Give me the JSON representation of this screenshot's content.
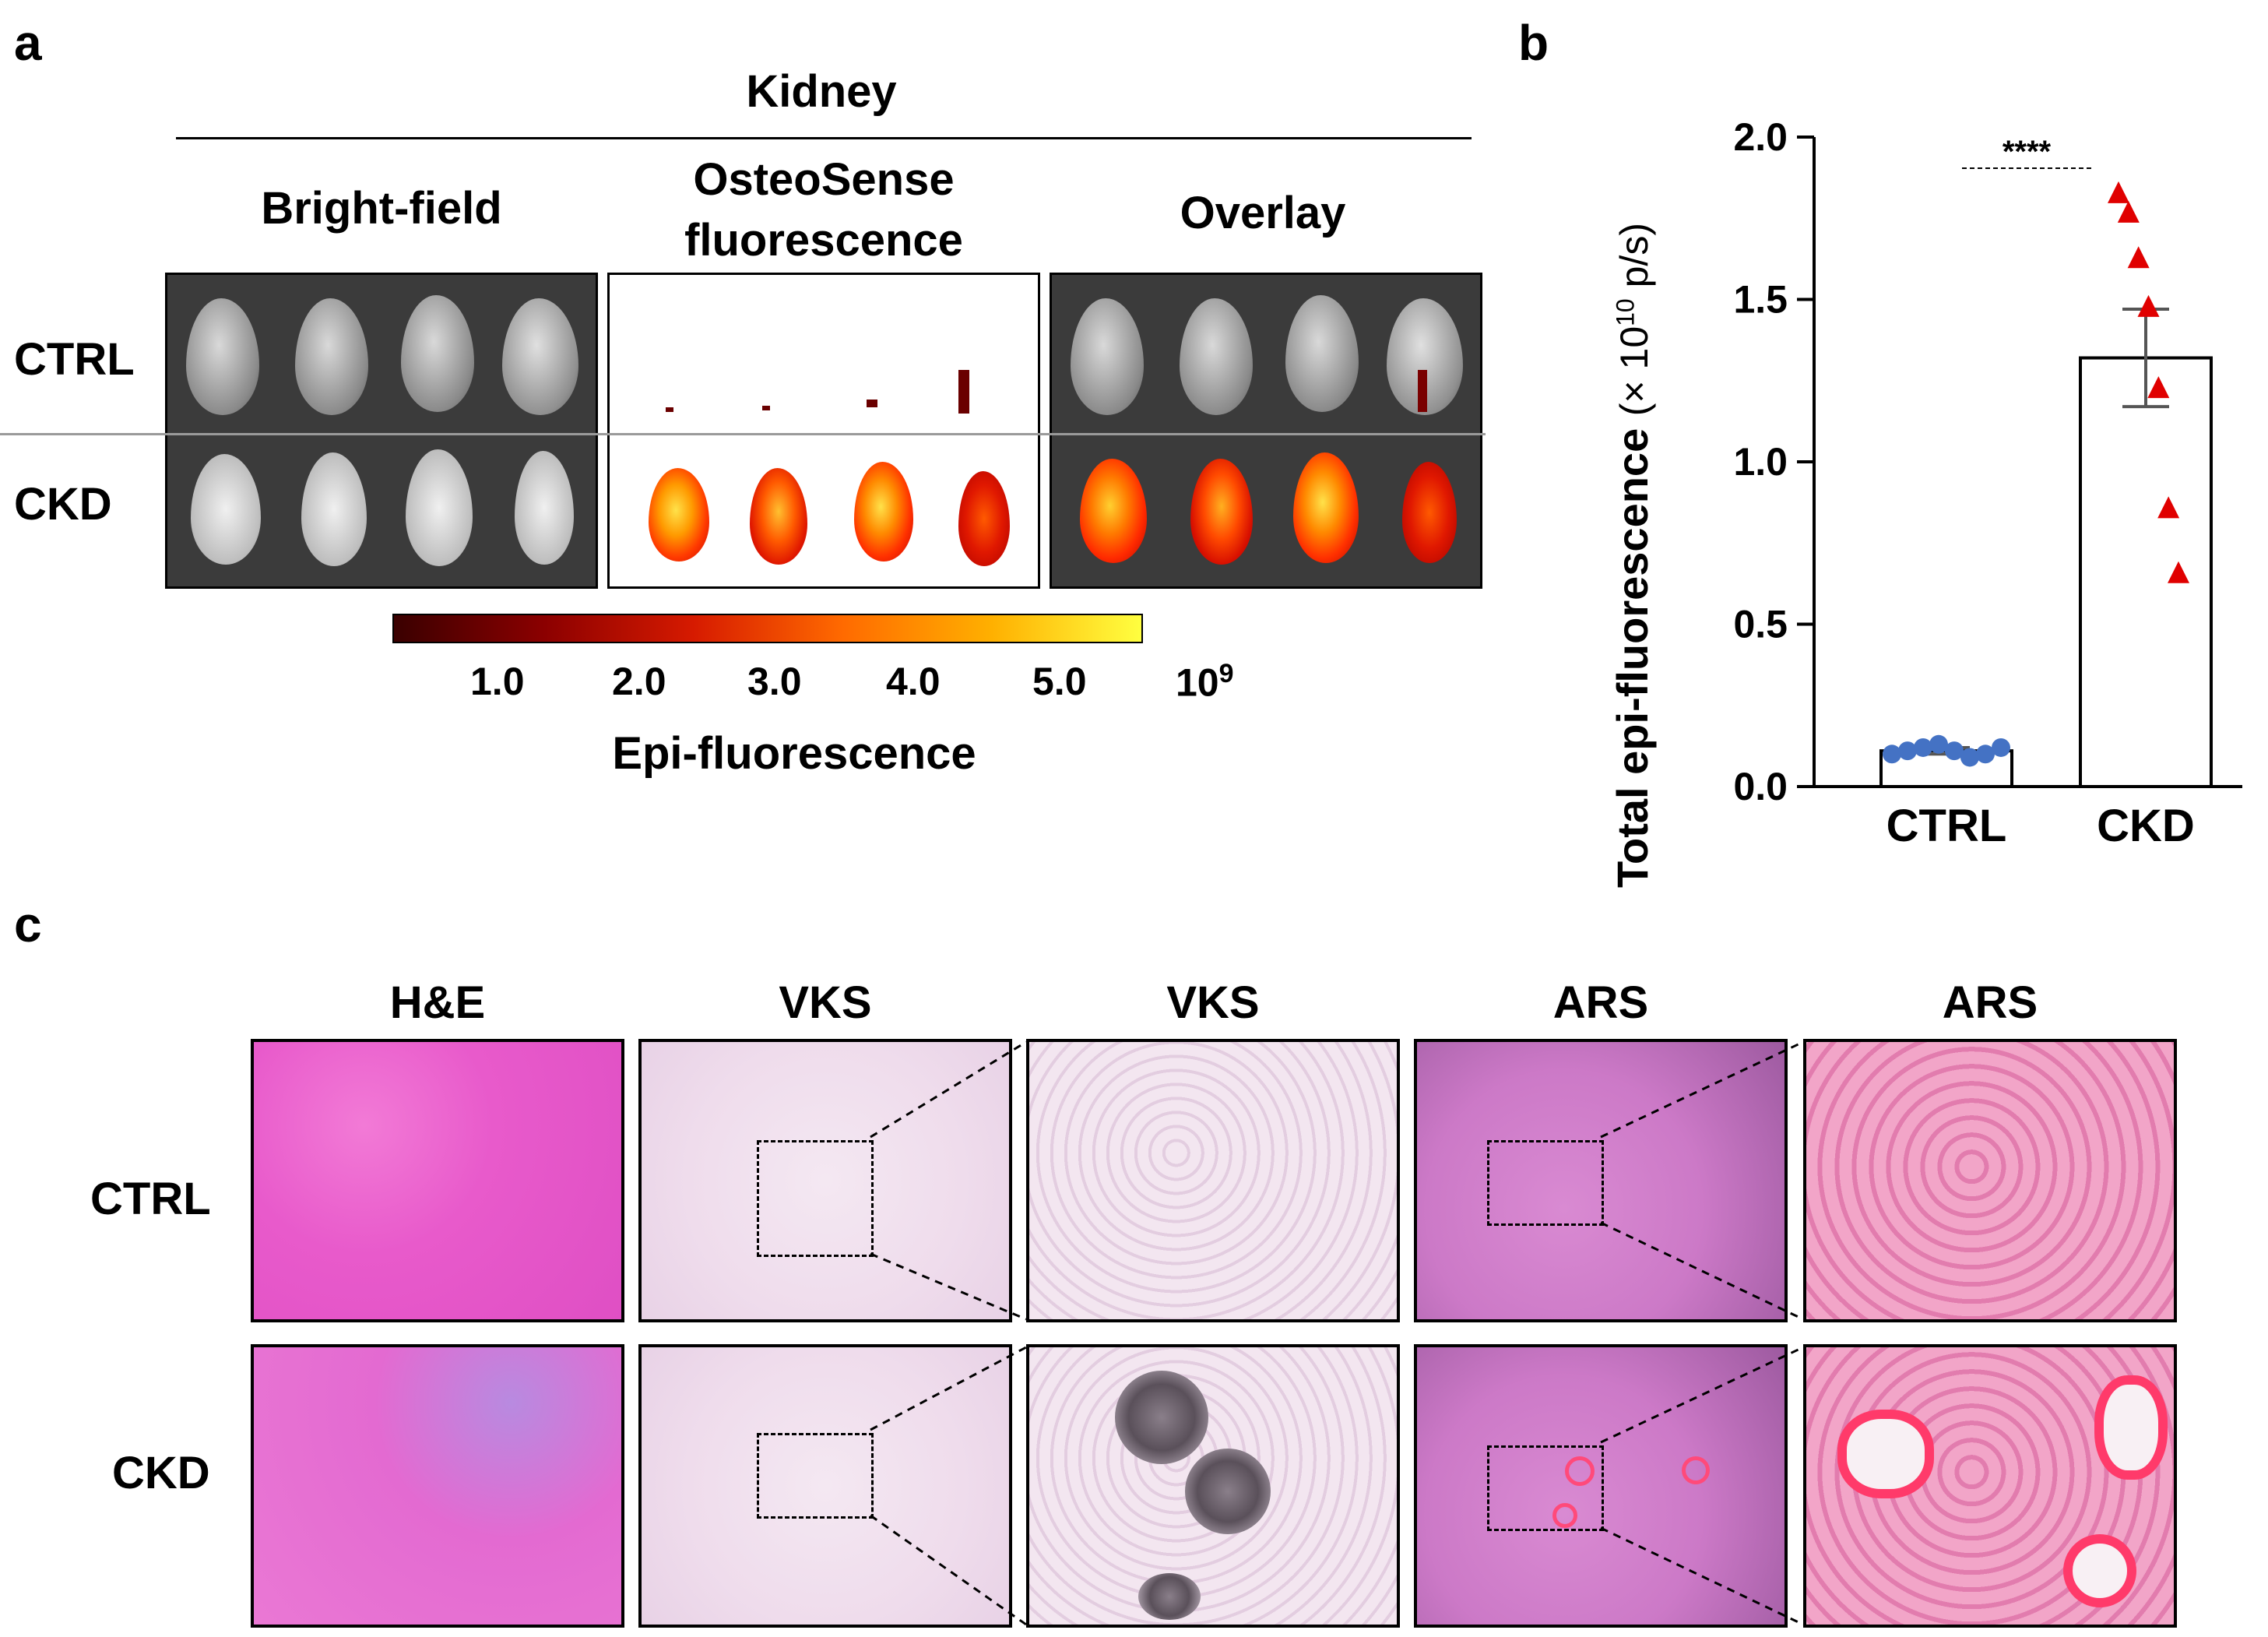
{
  "panel_a": {
    "label": "a",
    "organ_title": "Kidney",
    "columns": [
      "Bright-field",
      "OsteoSense\nfluorescence",
      "Overlay"
    ],
    "col_bright": "Bright-field",
    "col_osteo_line1": "OsteoSense",
    "col_osteo_line2": "fluorescence",
    "col_overlay": "Overlay",
    "rows": [
      "CTRL",
      "CKD"
    ],
    "colorbar": {
      "ticks": [
        "1.0",
        "2.0",
        "3.0",
        "4.0",
        "5.0"
      ],
      "exponent_base": "10",
      "exponent": "9",
      "title": "Epi-fluorescence",
      "colors": [
        "#3a0000",
        "#8b0000",
        "#d61a00",
        "#ff6a00",
        "#ffb000",
        "#ffff40"
      ]
    }
  },
  "panel_b": {
    "label": "b",
    "significance": "****",
    "ylabel_main": "Total epi-fluorescence",
    "ylabel_unit_open": "(× 10",
    "ylabel_unit_exp": "10",
    "ylabel_unit_close": " p/s)",
    "chart_data": {
      "type": "bar",
      "categories": [
        "CTRL",
        "CKD"
      ],
      "values": [
        0.11,
        1.32
      ],
      "error": [
        0.01,
        0.15
      ],
      "ylim": [
        0,
        2.0
      ],
      "yticks": [
        "0.0",
        "0.5",
        "1.0",
        "1.5",
        "2.0"
      ],
      "points": {
        "CTRL": [
          0.1,
          0.11,
          0.12,
          0.13,
          0.11,
          0.09,
          0.1,
          0.12
        ],
        "CKD": [
          1.83,
          1.77,
          1.63,
          1.48,
          1.23,
          0.86,
          0.66
        ]
      },
      "colors": {
        "CTRL": "#4472c4",
        "CKD": "#e00000"
      }
    }
  },
  "panel_c": {
    "label": "c",
    "columns": [
      "H&E",
      "VKS",
      "VKS",
      "ARS",
      "ARS"
    ],
    "rows": [
      "CTRL",
      "CKD"
    ]
  }
}
